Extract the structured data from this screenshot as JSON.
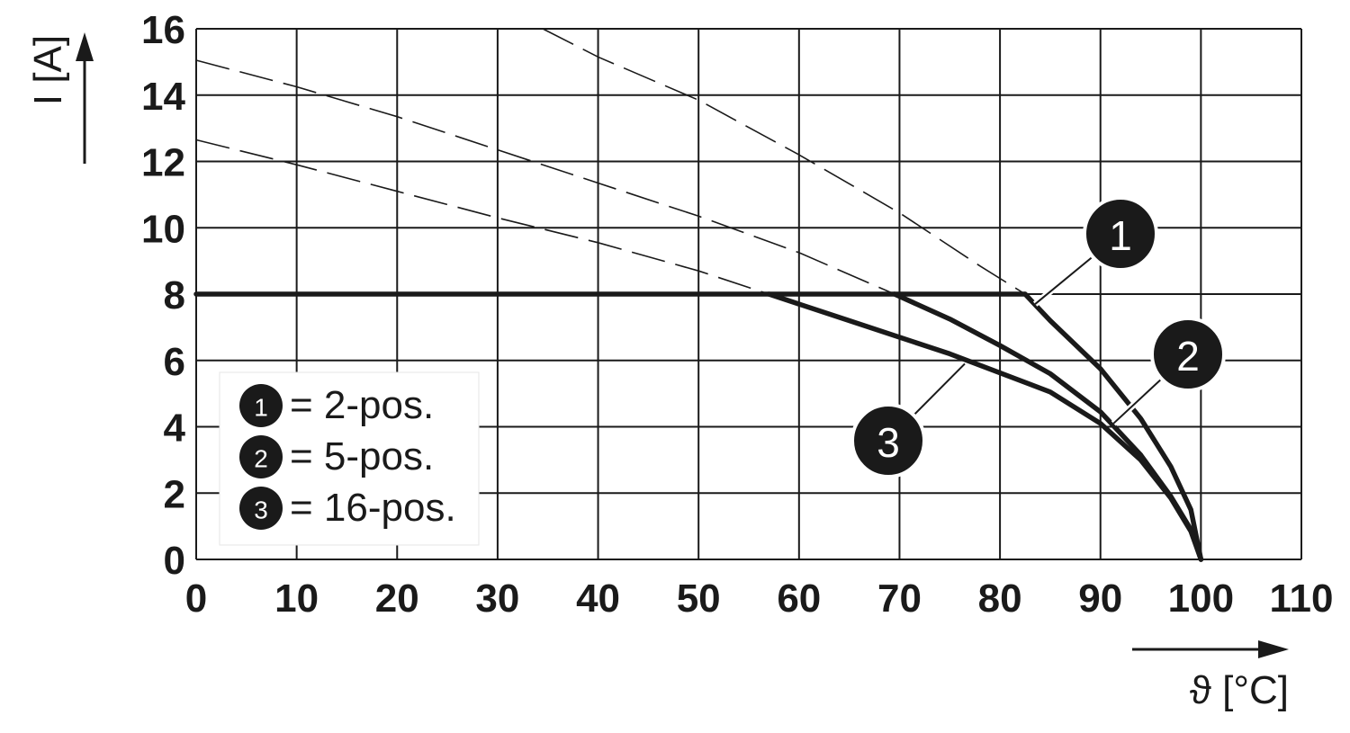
{
  "chart_data": {
    "type": "line",
    "xlabel": "ϑ [°C]",
    "ylabel": "I [A]",
    "xlim": [
      0,
      110
    ],
    "ylim": [
      0,
      16
    ],
    "xticks": [
      0,
      10,
      20,
      30,
      40,
      50,
      60,
      70,
      80,
      90,
      100,
      110
    ],
    "yticks": [
      0,
      2,
      4,
      6,
      8,
      10,
      12,
      14,
      16
    ],
    "grid": true,
    "legend_position": "lower-left",
    "legend": [
      {
        "id": "1",
        "label": "= 2-pos."
      },
      {
        "id": "2",
        "label": "= 5-pos."
      },
      {
        "id": "3",
        "label": "= 16-pos."
      }
    ],
    "current_limit": {
      "y": 8,
      "x_start": 0
    },
    "series": [
      {
        "name": "1",
        "dashed": [
          [
            34.5,
            16
          ],
          [
            40,
            15.15
          ],
          [
            50,
            13.85
          ],
          [
            60,
            12.2
          ],
          [
            70,
            10.45
          ],
          [
            78,
            8.85
          ],
          [
            82.5,
            8.0
          ]
        ],
        "solid": [
          [
            82.5,
            8.0
          ],
          [
            85,
            7.2
          ],
          [
            90,
            5.75
          ],
          [
            94,
            4.25
          ],
          [
            97,
            2.8
          ],
          [
            99,
            1.5
          ],
          [
            100,
            0
          ]
        ]
      },
      {
        "name": "2",
        "dashed": [
          [
            0,
            15.05
          ],
          [
            10,
            14.25
          ],
          [
            20,
            13.35
          ],
          [
            30,
            12.35
          ],
          [
            40,
            11.35
          ],
          [
            50,
            10.35
          ],
          [
            60,
            9.25
          ],
          [
            69.5,
            8.0
          ]
        ],
        "solid": [
          [
            69.5,
            8.0
          ],
          [
            75,
            7.25
          ],
          [
            80,
            6.45
          ],
          [
            85,
            5.6
          ],
          [
            90,
            4.45
          ],
          [
            94,
            3.15
          ],
          [
            97,
            1.9
          ],
          [
            99,
            0.9
          ],
          [
            100,
            0
          ]
        ]
      },
      {
        "name": "3",
        "dashed": [
          [
            0,
            12.65
          ],
          [
            10,
            11.9
          ],
          [
            20,
            11.1
          ],
          [
            30,
            10.3
          ],
          [
            40,
            9.55
          ],
          [
            50,
            8.7
          ],
          [
            57,
            8.0
          ]
        ],
        "solid": [
          [
            57,
            8.0
          ],
          [
            65,
            7.2
          ],
          [
            75,
            6.2
          ],
          [
            85,
            5.05
          ],
          [
            90,
            4.1
          ],
          [
            94,
            3.0
          ],
          [
            97,
            1.85
          ],
          [
            99,
            0.85
          ],
          [
            100,
            0
          ]
        ]
      }
    ],
    "callouts": [
      {
        "label": "1",
        "target": [
          83.5,
          7.7
        ]
      },
      {
        "label": "2",
        "target": [
          91.3,
          4.1
        ]
      },
      {
        "label": "3",
        "target": [
          76.5,
          5.9
        ]
      }
    ]
  }
}
